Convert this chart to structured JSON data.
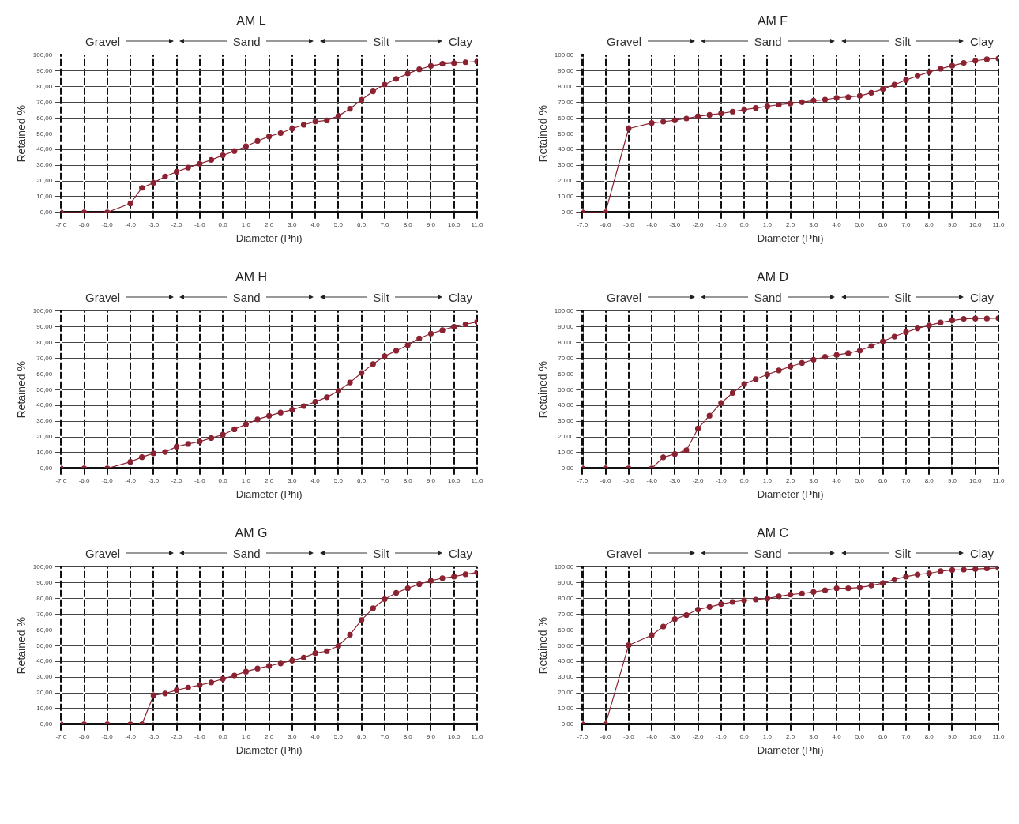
{
  "chart_data": [
    {
      "type": "line",
      "title": "AM L",
      "xlabel": "Diameter (Phi)",
      "ylabel": "Retained %",
      "annotations": [
        "Gravel",
        "Sand",
        "Silt",
        "Clay"
      ],
      "xlim": [
        -7,
        11
      ],
      "xticks": [
        {
          "value": -7,
          "label": "-7.0"
        },
        {
          "value": -6,
          "label": "-6.0"
        },
        {
          "value": -5,
          "label": "-5.0"
        },
        {
          "value": -4,
          "label": "-4.0"
        },
        {
          "value": -3,
          "label": "-3.0"
        },
        {
          "value": -2,
          "label": "-2.0"
        },
        {
          "value": -1,
          "label": "-1.0"
        },
        {
          "value": 0,
          "label": "0.0"
        },
        {
          "value": 1,
          "label": "1.0"
        },
        {
          "value": 2,
          "label": "2.0"
        },
        {
          "value": 3,
          "label": "3.0"
        },
        {
          "value": 4,
          "label": "4.0"
        },
        {
          "value": 5,
          "label": "5.0"
        },
        {
          "value": 6,
          "label": "6.0"
        },
        {
          "value": 7,
          "label": "7.0"
        },
        {
          "value": 8,
          "label": "8.0"
        },
        {
          "value": 9,
          "label": "9.0"
        },
        {
          "value": 10,
          "label": "10.0"
        },
        {
          "value": 11,
          "label": "11.0"
        }
      ],
      "ylim": [
        0,
        100
      ],
      "yticks": [
        {
          "value": 0,
          "label": "0,00"
        },
        {
          "value": 10,
          "label": "10,00"
        },
        {
          "value": 20,
          "label": "20,00"
        },
        {
          "value": 30,
          "label": "30,00"
        },
        {
          "value": 40,
          "label": "40,00"
        },
        {
          "value": 50,
          "label": "50,00"
        },
        {
          "value": 60,
          "label": "60,00"
        },
        {
          "value": 70,
          "label": "70,00"
        },
        {
          "value": 80,
          "label": "80,00"
        },
        {
          "value": 90,
          "label": "90,00"
        },
        {
          "value": 100,
          "label": "100,00"
        }
      ],
      "grid": true,
      "legend": false,
      "marker": "circle",
      "line_style": "solid",
      "x": [
        -7,
        -6,
        -5,
        -4,
        -3.5,
        -3,
        -2.5,
        -2,
        -1.5,
        -1,
        -0.5,
        0,
        0.5,
        1,
        1.5,
        2,
        2.5,
        3,
        3.5,
        4,
        4.5,
        5,
        5.5,
        6,
        6.5,
        7,
        7.5,
        8,
        8.5,
        9,
        9.5,
        10,
        10.5,
        11
      ],
      "series": [
        {
          "color": "#8b2232",
          "values": [
            0,
            0,
            0,
            5.7,
            15.6,
            18.8,
            22.8,
            25.8,
            28.5,
            30.9,
            33.4,
            36.3,
            39,
            42,
            45.4,
            48.3,
            50.4,
            53.3,
            55.7,
            57.8,
            58.5,
            61.4,
            65.9,
            71.6,
            77,
            81.3,
            84.9,
            88.3,
            91,
            93.2,
            94.6,
            95,
            95.5,
            95.9
          ]
        }
      ]
    },
    {
      "type": "line",
      "title": "AM F",
      "xlabel": "Diameter (Phi)",
      "ylabel": "Retained %",
      "annotations": [
        "Gravel",
        "Sand",
        "Silt",
        "Clay"
      ],
      "xlim": [
        -7,
        11
      ],
      "xticks": [
        {
          "value": -7,
          "label": "-7.0"
        },
        {
          "value": -6,
          "label": "-6.0"
        },
        {
          "value": -5,
          "label": "-5.0"
        },
        {
          "value": -4,
          "label": "-4.0"
        },
        {
          "value": -3,
          "label": "-3.0"
        },
        {
          "value": -2,
          "label": "-2.0"
        },
        {
          "value": -1,
          "label": "-1.0"
        },
        {
          "value": 0,
          "label": "0.0"
        },
        {
          "value": 1,
          "label": "1.0"
        },
        {
          "value": 2,
          "label": "2.0"
        },
        {
          "value": 3,
          "label": "3.0"
        },
        {
          "value": 4,
          "label": "4.0"
        },
        {
          "value": 5,
          "label": "5.0"
        },
        {
          "value": 6,
          "label": "6.0"
        },
        {
          "value": 7,
          "label": "7.0"
        },
        {
          "value": 8,
          "label": "8.0"
        },
        {
          "value": 9,
          "label": "9.0"
        },
        {
          "value": 10,
          "label": "10.0"
        },
        {
          "value": 11,
          "label": "11.0"
        }
      ],
      "ylim": [
        0,
        100
      ],
      "yticks": [
        {
          "value": 0,
          "label": "0,00"
        },
        {
          "value": 10,
          "label": "10,00"
        },
        {
          "value": 20,
          "label": "20,00"
        },
        {
          "value": 30,
          "label": "30,00"
        },
        {
          "value": 40,
          "label": "40,00"
        },
        {
          "value": 50,
          "label": "50,00"
        },
        {
          "value": 60,
          "label": "60,00"
        },
        {
          "value": 70,
          "label": "70,00"
        },
        {
          "value": 80,
          "label": "80,00"
        },
        {
          "value": 90,
          "label": "90,00"
        },
        {
          "value": 100,
          "label": "100,00"
        }
      ],
      "grid": true,
      "legend": false,
      "marker": "circle",
      "line_style": "solid",
      "x": [
        -7,
        -6,
        -5,
        -4,
        -3.5,
        -3,
        -2.5,
        -2,
        -1.5,
        -1,
        -0.5,
        0,
        0.5,
        1,
        1.5,
        2,
        2.5,
        3,
        3.5,
        4,
        4.5,
        5,
        5.5,
        6,
        6.5,
        7,
        7.5,
        8,
        8.5,
        9,
        9.5,
        10,
        10.5,
        11
      ],
      "series": [
        {
          "color": "#8b2232",
          "values": [
            0,
            0,
            53.3,
            56.9,
            57.7,
            58.6,
            59.7,
            61.1,
            62,
            62.9,
            64.1,
            65.3,
            66.4,
            67.4,
            68.5,
            69.2,
            70.1,
            71.1,
            71.7,
            72.9,
            73.4,
            74.1,
            76.1,
            78.5,
            81.2,
            84.2,
            86.8,
            89.3,
            91.4,
            93.3,
            95.1,
            96.5,
            97.4,
            97.9
          ]
        }
      ]
    },
    {
      "type": "line",
      "title": "AM H",
      "xlabel": "Diameter (Phi)",
      "ylabel": "Retained %",
      "annotations": [
        "Gravel",
        "Sand",
        "Silt",
        "Clay"
      ],
      "xlim": [
        -7,
        11
      ],
      "xticks": [
        {
          "value": -7,
          "label": "-7.0"
        },
        {
          "value": -6,
          "label": "-6.0"
        },
        {
          "value": -5,
          "label": "-5.0"
        },
        {
          "value": -4,
          "label": "-4.0"
        },
        {
          "value": -3,
          "label": "-3.0"
        },
        {
          "value": -2,
          "label": "-2.0"
        },
        {
          "value": -1,
          "label": "-1.0"
        },
        {
          "value": 0,
          "label": "0.0"
        },
        {
          "value": 1,
          "label": "1.0"
        },
        {
          "value": 2,
          "label": "2.0"
        },
        {
          "value": 3,
          "label": "3.0"
        },
        {
          "value": 4,
          "label": "4.0"
        },
        {
          "value": 5,
          "label": "5.0"
        },
        {
          "value": 6,
          "label": "6.0"
        },
        {
          "value": 7,
          "label": "7.0"
        },
        {
          "value": 8,
          "label": "8.0"
        },
        {
          "value": 9,
          "label": "9.0"
        },
        {
          "value": 10,
          "label": "10.0"
        },
        {
          "value": 11,
          "label": "11.0"
        }
      ],
      "ylim": [
        0,
        100
      ],
      "yticks": [
        {
          "value": 0,
          "label": "0,00"
        },
        {
          "value": 10,
          "label": "10,00"
        },
        {
          "value": 20,
          "label": "20,00"
        },
        {
          "value": 30,
          "label": "30,00"
        },
        {
          "value": 40,
          "label": "40,00"
        },
        {
          "value": 50,
          "label": "50,00"
        },
        {
          "value": 60,
          "label": "60,00"
        },
        {
          "value": 70,
          "label": "70,00"
        },
        {
          "value": 80,
          "label": "80,00"
        },
        {
          "value": 90,
          "label": "90,00"
        },
        {
          "value": 100,
          "label": "100,00"
        }
      ],
      "grid": true,
      "legend": false,
      "marker": "circle",
      "line_style": "solid",
      "x": [
        -7,
        -6,
        -5,
        -4,
        -3.5,
        -3,
        -2.5,
        -2,
        -1.5,
        -1,
        -0.5,
        0,
        0.5,
        1,
        1.5,
        2,
        2.5,
        3,
        3.5,
        4,
        4.5,
        5,
        5.5,
        6,
        6.5,
        7,
        7.5,
        8,
        8.5,
        9,
        9.5,
        10,
        10.5,
        11
      ],
      "series": [
        {
          "color": "#8b2232",
          "values": [
            0,
            0,
            0,
            4.1,
            7.1,
            9.5,
            10.4,
            13.8,
            15.5,
            17,
            19.3,
            21.4,
            24.8,
            28,
            31.1,
            33.4,
            35.5,
            37.3,
            39.6,
            42.3,
            45.2,
            49.3,
            54.6,
            60.7,
            66.3,
            71.3,
            74.8,
            78.4,
            82.7,
            85.7,
            87.9,
            90,
            91.6,
            93.2
          ]
        }
      ]
    },
    {
      "type": "line",
      "title": "AM D",
      "xlabel": "Diameter (Phi)",
      "ylabel": "Retained %",
      "annotations": [
        "Gravel",
        "Sand",
        "Silt",
        "Clay"
      ],
      "xlim": [
        -7,
        11
      ],
      "xticks": [
        {
          "value": -7,
          "label": "-7.0"
        },
        {
          "value": -6,
          "label": "-6.0"
        },
        {
          "value": -5,
          "label": "-5.0"
        },
        {
          "value": -4,
          "label": "-4.0"
        },
        {
          "value": -3,
          "label": "-3.0"
        },
        {
          "value": -2,
          "label": "-2.0"
        },
        {
          "value": -1,
          "label": "-1.0"
        },
        {
          "value": 0,
          "label": "0.0"
        },
        {
          "value": 1,
          "label": "1.0"
        },
        {
          "value": 2,
          "label": "2.0"
        },
        {
          "value": 3,
          "label": "3.0"
        },
        {
          "value": 4,
          "label": "4.0"
        },
        {
          "value": 5,
          "label": "5.0"
        },
        {
          "value": 6,
          "label": "6.0"
        },
        {
          "value": 7,
          "label": "7.0"
        },
        {
          "value": 8,
          "label": "8.0"
        },
        {
          "value": 9,
          "label": "9.0"
        },
        {
          "value": 10,
          "label": "10.0"
        },
        {
          "value": 11,
          "label": "11.0"
        }
      ],
      "ylim": [
        0,
        100
      ],
      "yticks": [
        {
          "value": 0,
          "label": "0,00"
        },
        {
          "value": 10,
          "label": "10,00"
        },
        {
          "value": 20,
          "label": "20,00"
        },
        {
          "value": 30,
          "label": "30,00"
        },
        {
          "value": 40,
          "label": "40,00"
        },
        {
          "value": 50,
          "label": "50,00"
        },
        {
          "value": 60,
          "label": "60,00"
        },
        {
          "value": 70,
          "label": "70,00"
        },
        {
          "value": 80,
          "label": "80,00"
        },
        {
          "value": 90,
          "label": "90,00"
        },
        {
          "value": 100,
          "label": "100,00"
        }
      ],
      "grid": true,
      "legend": false,
      "marker": "circle",
      "line_style": "solid",
      "x": [
        -7,
        -6,
        -5,
        -4,
        -3.5,
        -3,
        -2.5,
        -2,
        -1.5,
        -1,
        -0.5,
        0,
        0.5,
        1,
        1.5,
        2,
        2.5,
        3,
        3.5,
        4,
        4.5,
        5,
        5.5,
        6,
        6.5,
        7,
        7.5,
        8,
        8.5,
        9,
        9.5,
        10,
        10.5,
        11
      ],
      "series": [
        {
          "color": "#8b2232",
          "values": [
            0,
            0,
            0,
            0,
            7,
            9.1,
            11.5,
            25.3,
            33.5,
            41.5,
            48,
            53.6,
            56.7,
            59.7,
            62.3,
            64.7,
            67,
            69.1,
            70.9,
            72.1,
            73.3,
            74.9,
            77.8,
            80.8,
            83.8,
            86.6,
            89,
            90.9,
            92.8,
            94.1,
            95.1,
            95.3,
            95.3,
            95.5
          ]
        }
      ]
    },
    {
      "type": "line",
      "title": "AM G",
      "xlabel": "Diameter (Phi)",
      "ylabel": "Retained %",
      "annotations": [
        "Gravel",
        "Sand",
        "Silt",
        "Clay"
      ],
      "xlim": [
        -7,
        11
      ],
      "xticks": [
        {
          "value": -7,
          "label": "-7.0"
        },
        {
          "value": -6,
          "label": "-6.0"
        },
        {
          "value": -5,
          "label": "-5.0"
        },
        {
          "value": -4,
          "label": "-4.0"
        },
        {
          "value": -3,
          "label": "-3.0"
        },
        {
          "value": -2,
          "label": "-2.0"
        },
        {
          "value": -1,
          "label": "-1.0"
        },
        {
          "value": 0,
          "label": "0.0"
        },
        {
          "value": 1,
          "label": "1.0"
        },
        {
          "value": 2,
          "label": "2.0"
        },
        {
          "value": 3,
          "label": "3.0"
        },
        {
          "value": 4,
          "label": "4.0"
        },
        {
          "value": 5,
          "label": "5.0"
        },
        {
          "value": 6,
          "label": "6.0"
        },
        {
          "value": 7,
          "label": "7.0"
        },
        {
          "value": 8,
          "label": "8.0"
        },
        {
          "value": 9,
          "label": "9.0"
        },
        {
          "value": 10,
          "label": "10.0"
        },
        {
          "value": 11,
          "label": "11.0"
        }
      ],
      "ylim": [
        0,
        100
      ],
      "yticks": [
        {
          "value": 0,
          "label": "0,00"
        },
        {
          "value": 10,
          "label": "10,00"
        },
        {
          "value": 20,
          "label": "20,00"
        },
        {
          "value": 30,
          "label": "30,00"
        },
        {
          "value": 40,
          "label": "40,00"
        },
        {
          "value": 50,
          "label": "50,00"
        },
        {
          "value": 60,
          "label": "60,00"
        },
        {
          "value": 70,
          "label": "70,00"
        },
        {
          "value": 80,
          "label": "80,00"
        },
        {
          "value": 90,
          "label": "90,00"
        },
        {
          "value": 100,
          "label": "100,00"
        }
      ],
      "grid": true,
      "legend": false,
      "marker": "circle",
      "line_style": "solid",
      "x": [
        -7,
        -6,
        -5,
        -4,
        -3.5,
        -3,
        -2.5,
        -2,
        -1.5,
        -1,
        -0.5,
        0,
        0.5,
        1,
        1.5,
        2,
        2.5,
        3,
        3.5,
        4,
        4.5,
        5,
        5.5,
        6,
        6.5,
        7,
        7.5,
        8,
        8.5,
        9,
        9.5,
        10,
        10.5,
        11
      ],
      "series": [
        {
          "color": "#8b2232",
          "values": [
            0,
            0,
            0,
            0,
            0,
            18.4,
            19.6,
            21.7,
            23.4,
            25,
            26.6,
            28.9,
            31,
            33.5,
            35.5,
            37.1,
            38.7,
            40.6,
            42.4,
            45.3,
            46.5,
            49.9,
            57,
            66.3,
            73.8,
            79.5,
            83.6,
            86.5,
            89.1,
            91.3,
            93,
            93.9,
            95.4,
            96.6
          ]
        }
      ]
    },
    {
      "type": "line",
      "title": "AM C",
      "xlabel": "Diameter (Phi)",
      "ylabel": "Retained %",
      "annotations": [
        "Gravel",
        "Sand",
        "Silt",
        "Clay"
      ],
      "xlim": [
        -7,
        11
      ],
      "xticks": [
        {
          "value": -7,
          "label": "-7.0"
        },
        {
          "value": -6,
          "label": "-6.0"
        },
        {
          "value": -5,
          "label": "-5.0"
        },
        {
          "value": -4,
          "label": "-4.0"
        },
        {
          "value": -3,
          "label": "-3.0"
        },
        {
          "value": -2,
          "label": "-2.0"
        },
        {
          "value": -1,
          "label": "-1.0"
        },
        {
          "value": 0,
          "label": "0.0"
        },
        {
          "value": 1,
          "label": "1.0"
        },
        {
          "value": 2,
          "label": "2.0"
        },
        {
          "value": 3,
          "label": "3.0"
        },
        {
          "value": 4,
          "label": "4.0"
        },
        {
          "value": 5,
          "label": "5.0"
        },
        {
          "value": 6,
          "label": "6.0"
        },
        {
          "value": 7,
          "label": "7.0"
        },
        {
          "value": 8,
          "label": "8.0"
        },
        {
          "value": 9,
          "label": "9.0"
        },
        {
          "value": 10,
          "label": "10.0"
        },
        {
          "value": 11,
          "label": "11.0"
        }
      ],
      "ylim": [
        0,
        100
      ],
      "yticks": [
        {
          "value": 0,
          "label": "0,00"
        },
        {
          "value": 10,
          "label": "10,00"
        },
        {
          "value": 20,
          "label": "20,00"
        },
        {
          "value": 30,
          "label": "30,00"
        },
        {
          "value": 40,
          "label": "40,00"
        },
        {
          "value": 50,
          "label": "50,00"
        },
        {
          "value": 60,
          "label": "60,00"
        },
        {
          "value": 70,
          "label": "70,00"
        },
        {
          "value": 80,
          "label": "80,00"
        },
        {
          "value": 90,
          "label": "90,00"
        },
        {
          "value": 100,
          "label": "100,00"
        }
      ],
      "grid": true,
      "legend": false,
      "marker": "circle",
      "line_style": "solid",
      "x": [
        -7,
        -6,
        -5,
        -4,
        -3.5,
        -3,
        -2.5,
        -2,
        -1.5,
        -1,
        -0.5,
        0,
        0.5,
        1,
        1.5,
        2,
        2.5,
        3,
        3.5,
        4,
        4.5,
        5,
        5.5,
        6,
        6.5,
        7,
        7.5,
        8,
        8.5,
        9,
        9.5,
        10,
        10.5,
        11
      ],
      "series": [
        {
          "color": "#8b2232",
          "values": [
            0,
            0,
            50.3,
            56.7,
            62.2,
            66.9,
            69.5,
            73,
            74.6,
            76.5,
            77.8,
            78.8,
            79.3,
            80,
            81.4,
            82.5,
            83.2,
            84.2,
            85.3,
            86.5,
            86.5,
            87,
            88.3,
            89.8,
            92.1,
            93.9,
            95.3,
            96,
            97.4,
            98.2,
            98.4,
            98.8,
            99.1,
            99.5
          ]
        }
      ]
    }
  ]
}
